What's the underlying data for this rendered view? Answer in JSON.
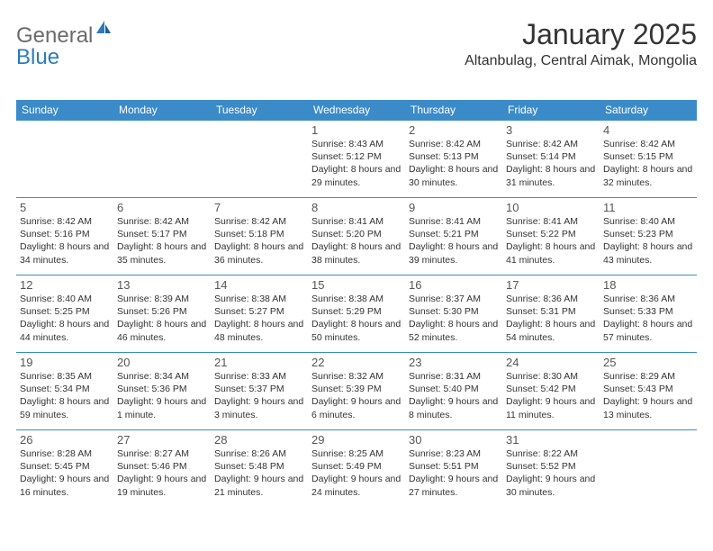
{
  "brand": {
    "name1": "General",
    "name2": "Blue"
  },
  "title": "January 2025",
  "location": "Altanbulag, Central Aimak, Mongolia",
  "colors": {
    "header_bg": "#3b8bc9",
    "header_text": "#ffffff",
    "row_border": "#3b8bc9",
    "text": "#333333",
    "logo_gray": "#6b6b6b",
    "logo_blue": "#2b7bbd",
    "background": "#ffffff"
  },
  "day_headers": [
    "Sunday",
    "Monday",
    "Tuesday",
    "Wednesday",
    "Thursday",
    "Friday",
    "Saturday"
  ],
  "weeks": [
    [
      null,
      null,
      null,
      {
        "n": "1",
        "sr": "8:43 AM",
        "ss": "5:12 PM",
        "dl": "8 hours and 29 minutes."
      },
      {
        "n": "2",
        "sr": "8:42 AM",
        "ss": "5:13 PM",
        "dl": "8 hours and 30 minutes."
      },
      {
        "n": "3",
        "sr": "8:42 AM",
        "ss": "5:14 PM",
        "dl": "8 hours and 31 minutes."
      },
      {
        "n": "4",
        "sr": "8:42 AM",
        "ss": "5:15 PM",
        "dl": "8 hours and 32 minutes."
      }
    ],
    [
      {
        "n": "5",
        "sr": "8:42 AM",
        "ss": "5:16 PM",
        "dl": "8 hours and 34 minutes."
      },
      {
        "n": "6",
        "sr": "8:42 AM",
        "ss": "5:17 PM",
        "dl": "8 hours and 35 minutes."
      },
      {
        "n": "7",
        "sr": "8:42 AM",
        "ss": "5:18 PM",
        "dl": "8 hours and 36 minutes."
      },
      {
        "n": "8",
        "sr": "8:41 AM",
        "ss": "5:20 PM",
        "dl": "8 hours and 38 minutes."
      },
      {
        "n": "9",
        "sr": "8:41 AM",
        "ss": "5:21 PM",
        "dl": "8 hours and 39 minutes."
      },
      {
        "n": "10",
        "sr": "8:41 AM",
        "ss": "5:22 PM",
        "dl": "8 hours and 41 minutes."
      },
      {
        "n": "11",
        "sr": "8:40 AM",
        "ss": "5:23 PM",
        "dl": "8 hours and 43 minutes."
      }
    ],
    [
      {
        "n": "12",
        "sr": "8:40 AM",
        "ss": "5:25 PM",
        "dl": "8 hours and 44 minutes."
      },
      {
        "n": "13",
        "sr": "8:39 AM",
        "ss": "5:26 PM",
        "dl": "8 hours and 46 minutes."
      },
      {
        "n": "14",
        "sr": "8:38 AM",
        "ss": "5:27 PM",
        "dl": "8 hours and 48 minutes."
      },
      {
        "n": "15",
        "sr": "8:38 AM",
        "ss": "5:29 PM",
        "dl": "8 hours and 50 minutes."
      },
      {
        "n": "16",
        "sr": "8:37 AM",
        "ss": "5:30 PM",
        "dl": "8 hours and 52 minutes."
      },
      {
        "n": "17",
        "sr": "8:36 AM",
        "ss": "5:31 PM",
        "dl": "8 hours and 54 minutes."
      },
      {
        "n": "18",
        "sr": "8:36 AM",
        "ss": "5:33 PM",
        "dl": "8 hours and 57 minutes."
      }
    ],
    [
      {
        "n": "19",
        "sr": "8:35 AM",
        "ss": "5:34 PM",
        "dl": "8 hours and 59 minutes."
      },
      {
        "n": "20",
        "sr": "8:34 AM",
        "ss": "5:36 PM",
        "dl": "9 hours and 1 minute."
      },
      {
        "n": "21",
        "sr": "8:33 AM",
        "ss": "5:37 PM",
        "dl": "9 hours and 3 minutes."
      },
      {
        "n": "22",
        "sr": "8:32 AM",
        "ss": "5:39 PM",
        "dl": "9 hours and 6 minutes."
      },
      {
        "n": "23",
        "sr": "8:31 AM",
        "ss": "5:40 PM",
        "dl": "9 hours and 8 minutes."
      },
      {
        "n": "24",
        "sr": "8:30 AM",
        "ss": "5:42 PM",
        "dl": "9 hours and 11 minutes."
      },
      {
        "n": "25",
        "sr": "8:29 AM",
        "ss": "5:43 PM",
        "dl": "9 hours and 13 minutes."
      }
    ],
    [
      {
        "n": "26",
        "sr": "8:28 AM",
        "ss": "5:45 PM",
        "dl": "9 hours and 16 minutes."
      },
      {
        "n": "27",
        "sr": "8:27 AM",
        "ss": "5:46 PM",
        "dl": "9 hours and 19 minutes."
      },
      {
        "n": "28",
        "sr": "8:26 AM",
        "ss": "5:48 PM",
        "dl": "9 hours and 21 minutes."
      },
      {
        "n": "29",
        "sr": "8:25 AM",
        "ss": "5:49 PM",
        "dl": "9 hours and 24 minutes."
      },
      {
        "n": "30",
        "sr": "8:23 AM",
        "ss": "5:51 PM",
        "dl": "9 hours and 27 minutes."
      },
      {
        "n": "31",
        "sr": "8:22 AM",
        "ss": "5:52 PM",
        "dl": "9 hours and 30 minutes."
      },
      null
    ]
  ],
  "labels": {
    "sunrise": "Sunrise: ",
    "sunset": "Sunset: ",
    "daylight": "Daylight: "
  }
}
